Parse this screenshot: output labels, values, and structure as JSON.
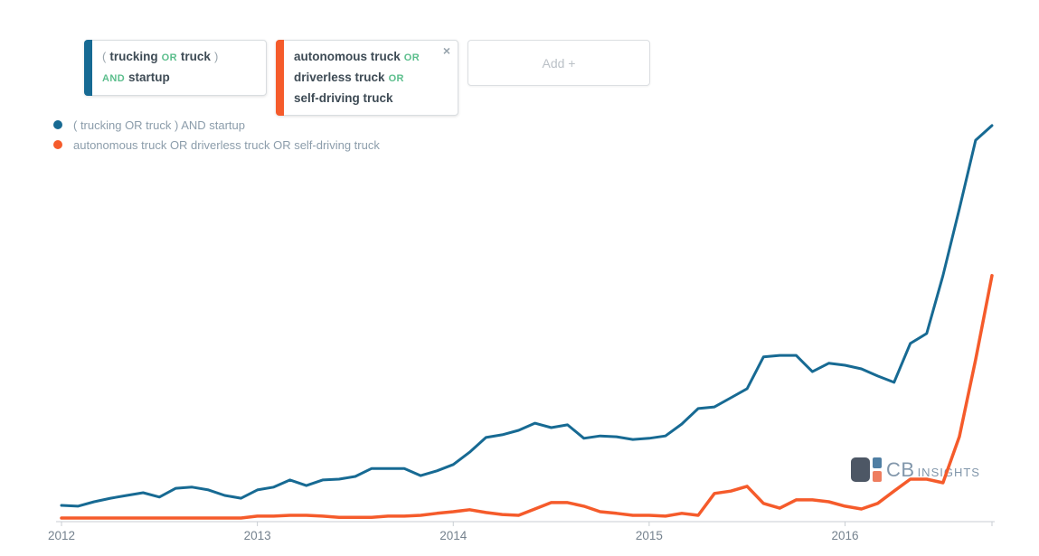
{
  "query_builder": {
    "chips": [
      {
        "color": "#176A93",
        "closable": false,
        "lines": [
          [
            {
              "t": "paren",
              "text": "("
            },
            {
              "t": "term",
              "text": "trucking"
            },
            {
              "t": "op",
              "text": "OR"
            },
            {
              "t": "term",
              "text": "truck"
            },
            {
              "t": "paren",
              "text": ")"
            }
          ],
          [
            {
              "t": "op",
              "text": "AND"
            },
            {
              "t": "term",
              "text": "startup"
            }
          ]
        ]
      },
      {
        "color": "#F55B2B",
        "closable": true,
        "close_icon": "×",
        "lines": [
          [
            {
              "t": "term",
              "text": "autonomous truck"
            },
            {
              "t": "op",
              "text": "OR"
            }
          ],
          [
            {
              "t": "term",
              "text": "driverless truck"
            },
            {
              "t": "op",
              "text": "OR"
            }
          ],
          [
            {
              "t": "term",
              "text": "self-driving truck"
            }
          ]
        ]
      }
    ],
    "add_button_label": "Add +"
  },
  "legend": {
    "items": [
      {
        "color": "#176A93",
        "label": "( trucking OR truck ) AND startup"
      },
      {
        "color": "#F55B2B",
        "label": "autonomous truck OR driverless truck OR self-driving truck"
      }
    ]
  },
  "watermark": {
    "text_main": "CB",
    "text_sub": "INSIGHTS",
    "colors": {
      "block": "#4d5765",
      "top_square": "#4f7ea3",
      "bottom_square": "#ee7d5f",
      "text": "#8297ab"
    }
  },
  "axis": {
    "line_color": "#c9ced3",
    "label_color": "#75828e"
  },
  "chart_data": {
    "type": "line",
    "title": "",
    "x_unit": "month",
    "x_range": [
      "2012-01",
      "2016-10"
    ],
    "points_per_year": 12,
    "x_tick_labels": [
      "2012",
      "2013",
      "2014",
      "2015",
      "2016"
    ],
    "x_tick_month_indices": [
      0,
      12,
      24,
      36,
      48
    ],
    "ylim": [
      0,
      100
    ],
    "grid": false,
    "legend_position": "top-left",
    "series": [
      {
        "name": "( trucking OR truck ) AND startup",
        "color": "#176A93",
        "values": [
          4.1,
          3.9,
          5,
          5.9,
          6.6,
          7.3,
          6.2,
          8.4,
          8.7,
          8,
          6.6,
          5.9,
          8,
          8.7,
          10.5,
          9.1,
          10.5,
          10.7,
          11.4,
          13.4,
          13.4,
          13.4,
          11.6,
          12.8,
          14.4,
          17.5,
          21.2,
          21.9,
          23,
          24.8,
          23.7,
          24.4,
          21,
          21.6,
          21.4,
          20.7,
          21,
          21.6,
          24.6,
          28.5,
          28.9,
          31.2,
          33.5,
          41.5,
          41.9,
          41.9,
          37.8,
          39.9,
          39.4,
          38.5,
          36.7,
          35.1,
          44.9,
          47.4,
          62,
          78.8,
          96.1,
          99.8
        ]
      },
      {
        "name": "autonomous truck OR driverless truck OR self-driving truck",
        "color": "#F55B2B",
        "values": [
          0.9,
          0.9,
          0.9,
          0.9,
          0.9,
          0.9,
          0.9,
          0.9,
          0.9,
          0.9,
          0.9,
          0.9,
          1.4,
          1.4,
          1.6,
          1.6,
          1.4,
          1.1,
          1.1,
          1.1,
          1.4,
          1.4,
          1.6,
          2.1,
          2.5,
          3,
          2.3,
          1.8,
          1.6,
          3.2,
          4.8,
          4.8,
          3.9,
          2.5,
          2.1,
          1.6,
          1.6,
          1.4,
          2.1,
          1.6,
          7.1,
          7.7,
          8.9,
          4.6,
          3.4,
          5.5,
          5.5,
          5,
          3.9,
          3.2,
          4.6,
          7.7,
          10.7,
          10.7,
          9.8,
          21.4,
          40.8,
          62
        ]
      }
    ]
  }
}
